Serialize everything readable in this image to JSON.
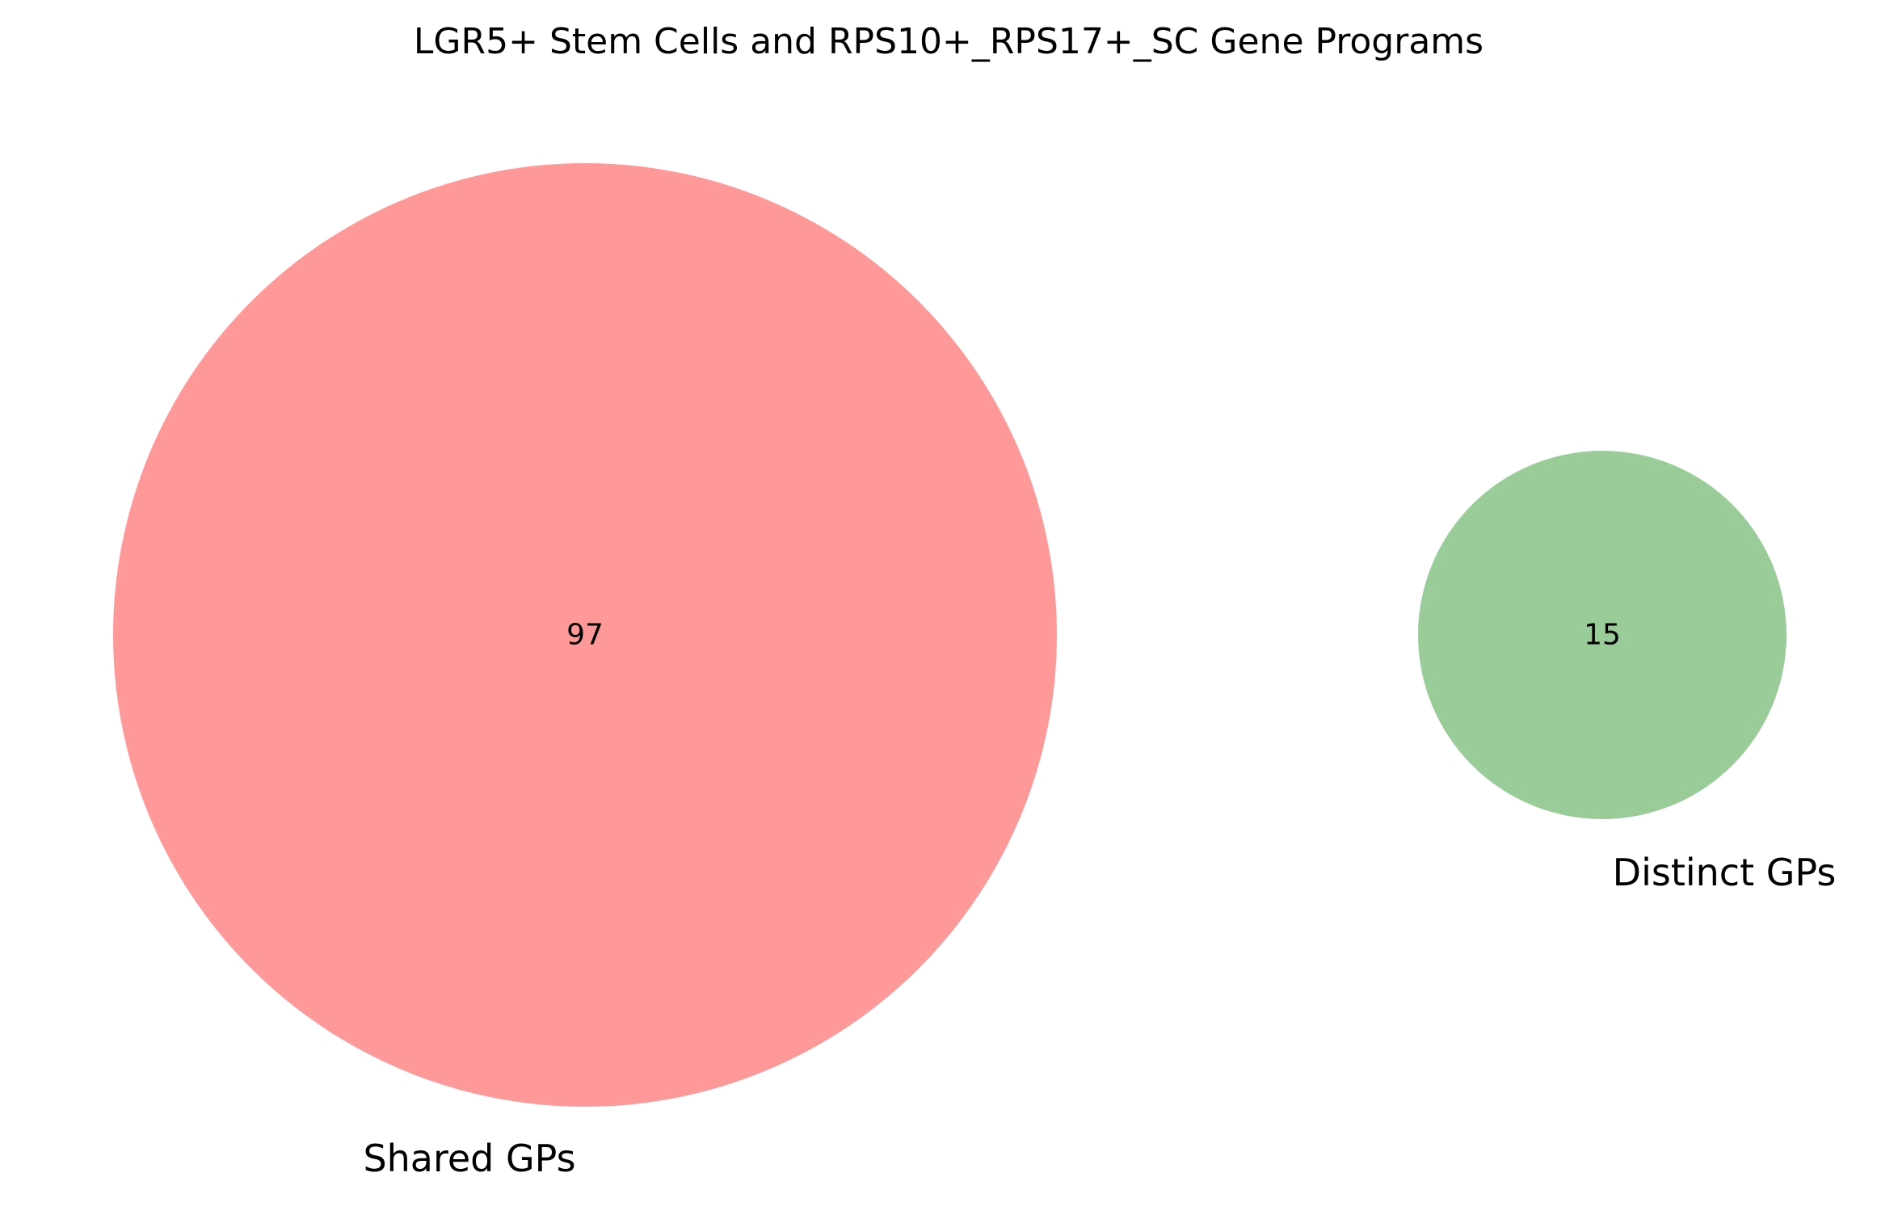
{
  "chart_data": {
    "type": "venn",
    "title": "LGR5+ Stem Cells and RPS10+_RPS17+_SC Gene Programs",
    "sets": [
      {
        "label": "Shared GPs",
        "count": 97,
        "color": "#ff9999",
        "color_name": "light-red"
      },
      {
        "label": "Distinct GPs",
        "count": 15,
        "color": "#99cc99",
        "color_name": "light-green"
      }
    ],
    "overlap": 0
  }
}
